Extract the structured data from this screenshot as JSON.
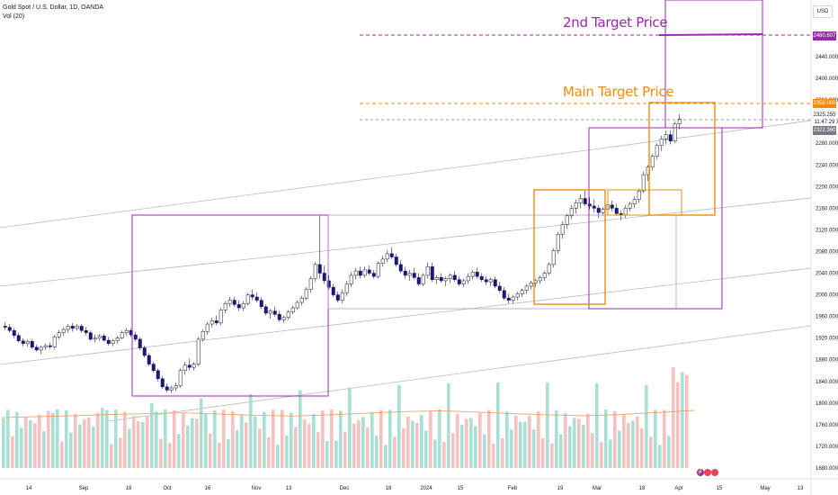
{
  "header": {
    "title": "Gold Spot / U.S. Dollar, 1D, OANDA",
    "indicator": "Vol (20)"
  },
  "price_axis": {
    "currency": "USD",
    "ticks": [
      "2440.000",
      "2400.000",
      "2360.000",
      "2320.000",
      "2280.000",
      "2240.000",
      "2200.000",
      "2160.000",
      "2120.000",
      "2080.000",
      "2040.000",
      "2000.000",
      "1960.000",
      "1920.000",
      "1880.000",
      "1840.000",
      "1800.000",
      "1760.000",
      "1720.000",
      "1680.000"
    ],
    "labels": {
      "second_target": "2480.807",
      "main_target": "2356.000",
      "last_price": "2325.255",
      "countdown": "11:47:29",
      "open_ref": "2322.360"
    }
  },
  "time_axis": {
    "ticks": [
      "14",
      "Sep",
      "18",
      "Oct",
      "16",
      "Nov",
      "13",
      "Dec",
      "18",
      "2024",
      "15",
      "Feb",
      "19",
      "Mar",
      "18",
      "Apr",
      "15",
      "May",
      "13"
    ]
  },
  "annotations": {
    "second_target": "2nd Target Price",
    "main_target": "Main Target Price"
  },
  "colors": {
    "up": "#ffffff",
    "down": "#1a1872",
    "wick": "#131722",
    "vol_up": "#a8e0d6",
    "vol_down": "#f6c2bf",
    "vol_ma": "#f5a06a",
    "purple": "#9c27b0",
    "orange": "#ef8c0c",
    "channel": "#b7b9c0",
    "dashed_gray": "#787b86"
  },
  "chart_data": {
    "type": "candlestick",
    "title": "Gold Spot / U.S. Dollar, 1D, OANDA",
    "ylim": [
      1660,
      2520
    ],
    "candles": [
      [
        1942,
        1950,
        1935,
        1940
      ],
      [
        1940,
        1946,
        1930,
        1934
      ],
      [
        1934,
        1938,
        1920,
        1925
      ],
      [
        1925,
        1930,
        1912,
        1915
      ],
      [
        1915,
        1920,
        1905,
        1910
      ],
      [
        1910,
        1918,
        1904,
        1914
      ],
      [
        1914,
        1918,
        1900,
        1903
      ],
      [
        1903,
        1908,
        1895,
        1898
      ],
      [
        1898,
        1906,
        1890,
        1903
      ],
      [
        1903,
        1910,
        1898,
        1906
      ],
      [
        1906,
        1912,
        1900,
        1904
      ],
      [
        1904,
        1926,
        1900,
        1922
      ],
      [
        1922,
        1935,
        1918,
        1930
      ],
      [
        1930,
        1940,
        1924,
        1936
      ],
      [
        1936,
        1946,
        1930,
        1942
      ],
      [
        1942,
        1948,
        1932,
        1938
      ],
      [
        1938,
        1946,
        1934,
        1942
      ],
      [
        1942,
        1946,
        1930,
        1934
      ],
      [
        1934,
        1940,
        1925,
        1930
      ],
      [
        1930,
        1934,
        1915,
        1918
      ],
      [
        1918,
        1926,
        1912,
        1920
      ],
      [
        1920,
        1928,
        1915,
        1924
      ],
      [
        1924,
        1928,
        1914,
        1916
      ],
      [
        1916,
        1922,
        1906,
        1910
      ],
      [
        1910,
        1918,
        1905,
        1915
      ],
      [
        1915,
        1924,
        1910,
        1920
      ],
      [
        1920,
        1934,
        1918,
        1930
      ],
      [
        1930,
        1938,
        1925,
        1934
      ],
      [
        1934,
        1938,
        1922,
        1926
      ],
      [
        1926,
        1932,
        1914,
        1918
      ],
      [
        1918,
        1922,
        1898,
        1902
      ],
      [
        1902,
        1906,
        1884,
        1888
      ],
      [
        1888,
        1892,
        1868,
        1872
      ],
      [
        1872,
        1876,
        1856,
        1860
      ],
      [
        1860,
        1864,
        1840,
        1845
      ],
      [
        1845,
        1850,
        1826,
        1830
      ],
      [
        1830,
        1836,
        1820,
        1824
      ],
      [
        1824,
        1832,
        1818,
        1828
      ],
      [
        1828,
        1838,
        1822,
        1832
      ],
      [
        1832,
        1864,
        1828,
        1860
      ],
      [
        1860,
        1876,
        1852,
        1870
      ],
      [
        1870,
        1882,
        1860,
        1866
      ],
      [
        1866,
        1876,
        1860,
        1872
      ],
      [
        1872,
        1922,
        1868,
        1918
      ],
      [
        1918,
        1936,
        1914,
        1932
      ],
      [
        1932,
        1950,
        1926,
        1946
      ],
      [
        1946,
        1958,
        1940,
        1952
      ],
      [
        1952,
        1962,
        1944,
        1948
      ],
      [
        1948,
        1976,
        1944,
        1972
      ],
      [
        1972,
        1988,
        1966,
        1984
      ],
      [
        1984,
        1996,
        1978,
        1990
      ],
      [
        1990,
        1996,
        1978,
        1982
      ],
      [
        1982,
        1990,
        1970,
        1976
      ],
      [
        1976,
        1988,
        1970,
        1984
      ],
      [
        1984,
        2004,
        1980,
        2000
      ],
      [
        2000,
        2010,
        1990,
        1996
      ],
      [
        1996,
        2004,
        1986,
        1990
      ],
      [
        1990,
        1996,
        1974,
        1978
      ],
      [
        1978,
        1982,
        1962,
        1966
      ],
      [
        1966,
        1974,
        1956,
        1970
      ],
      [
        1970,
        1978,
        1960,
        1964
      ],
      [
        1964,
        1970,
        1950,
        1954
      ],
      [
        1954,
        1962,
        1948,
        1958
      ],
      [
        1958,
        1972,
        1954,
        1968
      ],
      [
        1968,
        1980,
        1964,
        1976
      ],
      [
        1976,
        1990,
        1972,
        1986
      ],
      [
        1986,
        1998,
        1980,
        1994
      ],
      [
        1994,
        2014,
        1990,
        2010
      ],
      [
        2010,
        2034,
        2004,
        2030
      ],
      [
        2030,
        2060,
        2024,
        2056
      ],
      [
        2056,
        2146,
        2030,
        2040
      ],
      [
        2040,
        2054,
        2020,
        2026
      ],
      [
        2026,
        2036,
        2010,
        2014
      ],
      [
        2014,
        2020,
        1996,
        2000
      ],
      [
        2000,
        2006,
        1986,
        1990
      ],
      [
        1990,
        2010,
        1984,
        2004
      ],
      [
        2004,
        2026,
        1998,
        2020
      ],
      [
        2020,
        2042,
        2014,
        2036
      ],
      [
        2036,
        2050,
        2028,
        2044
      ],
      [
        2044,
        2052,
        2030,
        2036
      ],
      [
        2036,
        2052,
        2032,
        2046
      ],
      [
        2046,
        2054,
        2036,
        2040
      ],
      [
        2040,
        2046,
        2030,
        2034
      ],
      [
        2034,
        2062,
        2030,
        2058
      ],
      [
        2058,
        2072,
        2052,
        2066
      ],
      [
        2066,
        2082,
        2060,
        2076
      ],
      [
        2076,
        2088,
        2066,
        2070
      ],
      [
        2070,
        2076,
        2052,
        2056
      ],
      [
        2056,
        2064,
        2040,
        2044
      ],
      [
        2044,
        2052,
        2030,
        2036
      ],
      [
        2036,
        2046,
        2026,
        2040
      ],
      [
        2040,
        2050,
        2028,
        2032
      ],
      [
        2032,
        2040,
        2016,
        2020
      ],
      [
        2020,
        2040,
        2016,
        2036
      ],
      [
        2036,
        2060,
        2030,
        2052
      ],
      [
        2052,
        2060,
        2024,
        2028
      ],
      [
        2028,
        2036,
        2020,
        2032
      ],
      [
        2032,
        2040,
        2022,
        2026
      ],
      [
        2026,
        2034,
        2016,
        2030
      ],
      [
        2030,
        2040,
        2022,
        2036
      ],
      [
        2036,
        2044,
        2024,
        2028
      ],
      [
        2028,
        2034,
        2016,
        2020
      ],
      [
        2020,
        2030,
        2014,
        2026
      ],
      [
        2026,
        2040,
        2020,
        2034
      ],
      [
        2034,
        2046,
        2028,
        2042
      ],
      [
        2042,
        2050,
        2030,
        2034
      ],
      [
        2034,
        2040,
        2024,
        2028
      ],
      [
        2028,
        2034,
        2018,
        2024
      ],
      [
        2024,
        2032,
        2016,
        2028
      ],
      [
        2028,
        2034,
        2012,
        2016
      ],
      [
        2016,
        2024,
        2004,
        2008
      ],
      [
        2008,
        2014,
        1990,
        1994
      ],
      [
        1994,
        2002,
        1984,
        1990
      ],
      [
        1990,
        2000,
        1984,
        1996
      ],
      [
        1996,
        2006,
        1990,
        2002
      ],
      [
        2002,
        2012,
        1996,
        2008
      ],
      [
        2008,
        2020,
        2002,
        2016
      ],
      [
        2016,
        2026,
        2010,
        2022
      ],
      [
        2022,
        2030,
        2014,
        2026
      ],
      [
        2026,
        2036,
        2020,
        2032
      ],
      [
        2032,
        2044,
        2026,
        2040
      ],
      [
        2040,
        2060,
        2036,
        2056
      ],
      [
        2056,
        2086,
        2050,
        2082
      ],
      [
        2082,
        2116,
        2076,
        2112
      ],
      [
        2112,
        2136,
        2104,
        2130
      ],
      [
        2130,
        2150,
        2122,
        2146
      ],
      [
        2146,
        2166,
        2140,
        2160
      ],
      [
        2160,
        2176,
        2150,
        2170
      ],
      [
        2170,
        2186,
        2160,
        2178
      ],
      [
        2178,
        2194,
        2164,
        2168
      ],
      [
        2168,
        2180,
        2158,
        2164
      ],
      [
        2164,
        2176,
        2152,
        2160
      ],
      [
        2160,
        2166,
        2142,
        2152
      ],
      [
        2152,
        2162,
        2146,
        2158
      ],
      [
        2158,
        2172,
        2150,
        2166
      ],
      [
        2166,
        2174,
        2154,
        2160
      ],
      [
        2160,
        2168,
        2146,
        2150
      ],
      [
        2150,
        2156,
        2138,
        2148
      ],
      [
        2148,
        2166,
        2142,
        2160
      ],
      [
        2160,
        2172,
        2154,
        2168
      ],
      [
        2168,
        2182,
        2160,
        2176
      ],
      [
        2176,
        2196,
        2170,
        2192
      ],
      [
        2192,
        2228,
        2188,
        2222
      ],
      [
        2222,
        2240,
        2210,
        2236
      ],
      [
        2236,
        2260,
        2230,
        2256
      ],
      [
        2256,
        2280,
        2250,
        2276
      ],
      [
        2276,
        2294,
        2266,
        2288
      ],
      [
        2288,
        2304,
        2278,
        2296
      ],
      [
        2296,
        2304,
        2278,
        2284
      ],
      [
        2284,
        2320,
        2280,
        2316
      ],
      [
        2316,
        2334,
        2306,
        2325
      ]
    ],
    "volume_ma": [
      1782,
      1785,
      1787,
      1790,
      1792,
      1794,
      1791,
      1788,
      1786,
      1789,
      1793,
      1797,
      1799,
      1796,
      1792,
      1789,
      1787,
      1790,
      1795,
      1800
    ],
    "series": [
      {
        "name": "Main Target Price",
        "value": 2356.0
      },
      {
        "name": "2nd Target Price",
        "value": 2480.807
      }
    ]
  }
}
